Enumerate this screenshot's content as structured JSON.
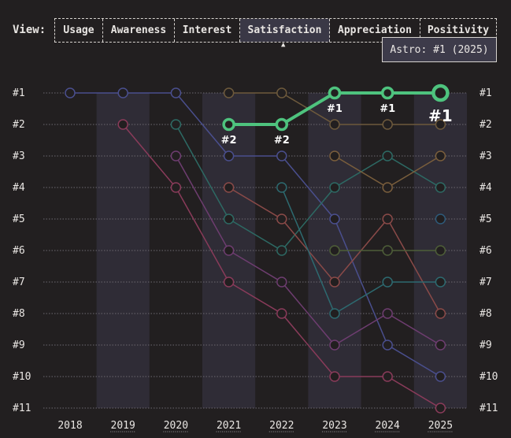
{
  "header": {
    "view_label": "View:",
    "tabs": [
      {
        "label": "Usage"
      },
      {
        "label": "Awareness"
      },
      {
        "label": "Interest"
      },
      {
        "label": "Satisfaction"
      },
      {
        "label": "Appreciation"
      },
      {
        "label": "Positivity"
      }
    ],
    "active_tab": "Satisfaction"
  },
  "tooltip": {
    "text": "Astro: #1 (2025)"
  },
  "chart_data": {
    "type": "line",
    "x": [
      "2018",
      "2019",
      "2020",
      "2021",
      "2022",
      "2023",
      "2024",
      "2025"
    ],
    "underlined_years": [
      "2019",
      "2020",
      "2021",
      "2022",
      "2023",
      "2024",
      "2025"
    ],
    "y_ticks": [
      "#1",
      "#2",
      "#3",
      "#4",
      "#5",
      "#6",
      "#7",
      "#8",
      "#9",
      "#10",
      "#11"
    ],
    "ylim": [
      1,
      11
    ],
    "y_inverted": true,
    "grid": "horizontal dotted",
    "highlight": {
      "name": "Astro",
      "color": "#4ec37e",
      "values": [
        null,
        null,
        null,
        2,
        2,
        1,
        1,
        1
      ],
      "labels": [
        "",
        "",
        "",
        "#2",
        "#2",
        "#1",
        "#1",
        "#1"
      ]
    },
    "series": [
      {
        "color": "#4a4f8e",
        "values": [
          1,
          1,
          1,
          3,
          3,
          5,
          9,
          10
        ]
      },
      {
        "color": "#8a3b5a",
        "values": [
          null,
          2,
          4,
          7,
          8,
          10,
          10,
          11
        ]
      },
      {
        "color": "#2d6a64",
        "values": [
          null,
          null,
          2,
          5,
          6,
          4,
          3,
          4
        ]
      },
      {
        "color": "#6e3d70",
        "values": [
          null,
          null,
          3,
          6,
          7,
          9,
          8,
          9
        ]
      },
      {
        "color": "#6e5a3c",
        "values": [
          null,
          null,
          null,
          1,
          1,
          2,
          2,
          2
        ]
      },
      {
        "color": "#8a4a48",
        "values": [
          null,
          null,
          null,
          4,
          5,
          7,
          5,
          8
        ]
      },
      {
        "color": "#2d6a70",
        "values": [
          null,
          null,
          null,
          null,
          4,
          8,
          7,
          7
        ]
      },
      {
        "color": "#7a5e3c",
        "values": [
          null,
          null,
          null,
          null,
          null,
          3,
          4,
          3
        ]
      },
      {
        "color": "#4e5e38",
        "values": [
          null,
          null,
          null,
          null,
          null,
          6,
          6,
          6
        ]
      },
      {
        "color": "#2e5a7a",
        "values": [
          null,
          null,
          null,
          null,
          null,
          null,
          null,
          5
        ]
      }
    ]
  }
}
